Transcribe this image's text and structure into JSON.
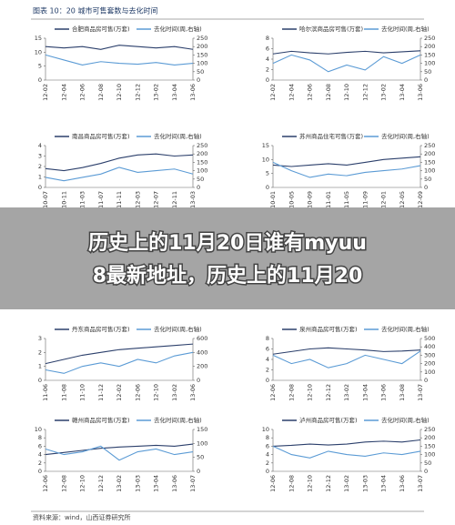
{
  "header": {
    "title": "图表 10：20 城市可售套数与去化时间"
  },
  "source": "资料来源：wind，山西证券研究所",
  "banner": {
    "lines": [
      "历史上的11月20日谁有myuu",
      "8最新地址，历史上的11月20"
    ]
  },
  "chart_data": [
    {
      "type": "line",
      "categories": [
        "12-02",
        "12-04",
        "12-06",
        "12-08",
        "12-10",
        "12-12",
        "13-02",
        "13-04",
        "13-06"
      ],
      "ylim": [
        0,
        15
      ],
      "yticks": [
        0,
        5,
        10,
        15
      ],
      "y2lim": [
        0,
        250
      ],
      "y2ticks": [
        0,
        50,
        100,
        150,
        200,
        250
      ],
      "series": [
        {
          "name": "合肥商品房可售(万套)",
          "color": "#2b3f6b",
          "values": [
            12,
            11.5,
            12,
            11,
            12.5,
            12,
            11.5,
            12,
            11
          ]
        },
        {
          "name": "去化时间(周,右轴)",
          "color": "#5b9bd5",
          "axis": "y2",
          "values": [
            150,
            120,
            90,
            110,
            100,
            95,
            105,
            90,
            100
          ]
        }
      ]
    },
    {
      "type": "line",
      "categories": [
        "12-02",
        "12-04",
        "12-06",
        "12-08",
        "12-10",
        "12-12",
        "13-02",
        "13-04",
        "13-06"
      ],
      "ylim": [
        0,
        8
      ],
      "yticks": [
        0,
        2,
        4,
        6,
        8
      ],
      "y2lim": [
        0,
        250
      ],
      "y2ticks": [
        0,
        50,
        100,
        150,
        200,
        250
      ],
      "series": [
        {
          "name": "哈尔滨商品房可售(万套)",
          "color": "#2b3f6b",
          "values": [
            5,
            5.5,
            5.2,
            5,
            5.3,
            5.5,
            5.2,
            5.4,
            5.6
          ]
        },
        {
          "name": "去化时间(周,右轴)",
          "color": "#5b9bd5",
          "axis": "y2",
          "values": [
            100,
            150,
            120,
            50,
            90,
            60,
            140,
            100,
            150
          ]
        }
      ]
    },
    {
      "type": "line",
      "categories": [
        "10-07",
        "10-11",
        "11-03",
        "11-07",
        "11-11",
        "12-03",
        "12-07",
        "12-11",
        "13-03"
      ],
      "ylim": [
        0,
        4
      ],
      "yticks": [
        0,
        1,
        2,
        3,
        4
      ],
      "y2lim": [
        0,
        250
      ],
      "y2ticks": [
        0,
        50,
        100,
        150,
        200,
        250
      ],
      "series": [
        {
          "name": "南昌商品房可售(万套)",
          "color": "#2b3f6b",
          "values": [
            1.8,
            1.6,
            1.9,
            2.3,
            2.8,
            3.1,
            3.2,
            3,
            3.1
          ]
        },
        {
          "name": "去化时间(周,右轴)",
          "color": "#5b9bd5",
          "axis": "y2",
          "values": [
            60,
            40,
            60,
            80,
            120,
            90,
            100,
            110,
            80
          ]
        }
      ]
    },
    {
      "type": "line",
      "categories": [
        "10-01",
        "10-05",
        "10-09",
        "11-01",
        "11-05",
        "11-09",
        "12-01",
        "12-05",
        "12-09"
      ],
      "ylim": [
        0,
        15
      ],
      "yticks": [
        0,
        5,
        10,
        15
      ],
      "y2lim": [
        0,
        250
      ],
      "y2ticks": [
        0,
        50,
        100,
        150,
        200,
        250
      ],
      "series": [
        {
          "name": "苏州商品住宅可售(万套)",
          "color": "#2b3f6b",
          "values": [
            8,
            7.5,
            8,
            8.5,
            8,
            9,
            10,
            10.5,
            11
          ]
        },
        {
          "name": "去化时间(周,右轴)",
          "color": "#5b9bd5",
          "axis": "y2",
          "values": [
            150,
            100,
            60,
            80,
            70,
            90,
            100,
            110,
            130
          ]
        }
      ]
    },
    {
      "type": "line",
      "categories": [
        "11-06",
        "11-08",
        "11-10",
        "11-12",
        "12-02",
        "12-06",
        "12-10",
        "13-02",
        "13-06"
      ],
      "ylim": [
        0,
        3
      ],
      "yticks": [
        0,
        1,
        2,
        3
      ],
      "y2lim": [
        0,
        600
      ],
      "y2ticks": [
        0,
        200,
        400,
        600
      ],
      "series": [
        {
          "name": "丹东商品房可售(万套)",
          "color": "#2b3f6b",
          "values": [
            1.2,
            1.5,
            1.8,
            2,
            2.2,
            2.3,
            2.4,
            2.5,
            2.6
          ]
        },
        {
          "name": "去化时间(周,右轴)",
          "color": "#5b9bd5",
          "axis": "y2",
          "values": [
            150,
            100,
            200,
            250,
            200,
            300,
            250,
            350,
            400
          ]
        }
      ]
    },
    {
      "type": "line",
      "categories": [
        "12-06",
        "12-08",
        "12-10",
        "12-12",
        "13-02",
        "13-04",
        "13-06",
        "13-08",
        "13-07"
      ],
      "ylim": [
        0,
        8
      ],
      "yticks": [
        0,
        2,
        4,
        6,
        8
      ],
      "y2lim": [
        0,
        500
      ],
      "y2ticks": [
        0,
        100,
        200,
        300,
        400,
        500
      ],
      "series": [
        {
          "name": "泉州商品房可售(万套)",
          "color": "#2b3f6b",
          "values": [
            5,
            5.5,
            6,
            6.2,
            6,
            5.8,
            5.5,
            5.6,
            5.8
          ]
        },
        {
          "name": "去化时间(周,右轴)",
          "color": "#5b9bd5",
          "axis": "y2",
          "values": [
            300,
            200,
            250,
            150,
            200,
            300,
            250,
            200,
            350
          ]
        }
      ]
    },
    {
      "type": "line",
      "categories": [
        "12-06",
        "12-08",
        "12-10",
        "12-12",
        "13-02",
        "13-03",
        "13-04",
        "13-06",
        "13-07"
      ],
      "ylim": [
        0,
        10
      ],
      "yticks": [
        0,
        2,
        4,
        6,
        8,
        10
      ],
      "y2lim": [
        0,
        150
      ],
      "y2ticks": [
        0,
        50,
        100,
        150
      ],
      "series": [
        {
          "name": "赣州商品房可售(万套)",
          "color": "#2b3f6b",
          "values": [
            4,
            4.5,
            5,
            5.5,
            5.8,
            6,
            6.2,
            6,
            6.5
          ]
        },
        {
          "name": "去化时间(周,右轴)",
          "color": "#5b9bd5",
          "axis": "y2",
          "values": [
            80,
            60,
            70,
            90,
            40,
            70,
            80,
            60,
            70
          ]
        }
      ]
    },
    {
      "type": "line",
      "categories": [
        "12-06",
        "12-08",
        "12-10",
        "12-12",
        "13-02",
        "13-03",
        "13-04",
        "13-06",
        "13-07"
      ],
      "ylim": [
        0,
        10
      ],
      "yticks": [
        0,
        2,
        4,
        6,
        8,
        10
      ],
      "y2lim": [
        0,
        250
      ],
      "y2ticks": [
        0,
        50,
        100,
        150,
        200,
        250
      ],
      "series": [
        {
          "name": "泸州商品房可售(万套)",
          "color": "#2b3f6b",
          "values": [
            6,
            6.2,
            6.5,
            6.3,
            6.5,
            7,
            7.2,
            7,
            7.5
          ]
        },
        {
          "name": "去化时间(周,右轴)",
          "color": "#5b9bd5",
          "axis": "y2",
          "values": [
            150,
            100,
            80,
            120,
            100,
            90,
            110,
            100,
            120
          ]
        }
      ]
    }
  ]
}
